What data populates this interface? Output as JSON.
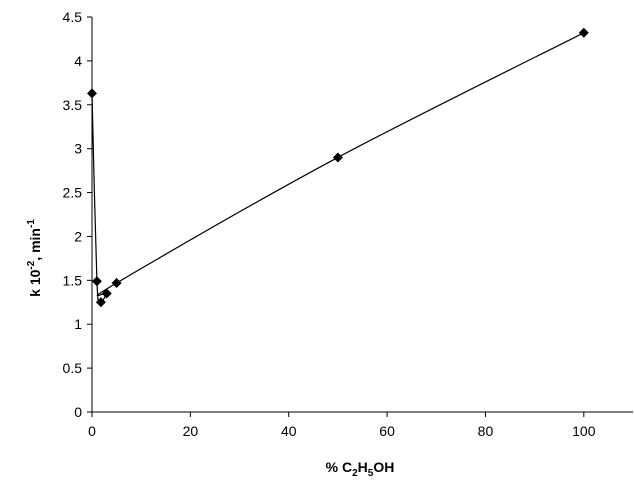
{
  "chart_data": {
    "type": "scatter",
    "title": "",
    "xlabel": {
      "main": "% C",
      "sub1": "2",
      "mid": "H",
      "sub2": "5",
      "end": "OH"
    },
    "ylabel": {
      "main": "k 10",
      "sup1": "-2",
      "mid": ", min",
      "sup2": "-1"
    },
    "xlim": [
      0,
      110
    ],
    "ylim": [
      0,
      4.5
    ],
    "x_ticks": [
      0,
      20,
      40,
      60,
      80,
      100
    ],
    "x_tick_labels": [
      "0",
      "20",
      "40",
      "60",
      "80",
      "100"
    ],
    "y_ticks": [
      0,
      0.5,
      1,
      1.5,
      2,
      2.5,
      3,
      3.5,
      4,
      4.5
    ],
    "y_tick_labels": [
      "0",
      "0.5",
      "1",
      "1.5",
      "2",
      "2.5",
      "3",
      "3.5",
      "4",
      "4.5"
    ],
    "grid": false,
    "legend": "none",
    "marker": "diamond",
    "series": [
      {
        "points": [
          {
            "x": 0,
            "y": 3.63
          },
          {
            "x": 1,
            "y": 1.49
          },
          {
            "x": 1.8,
            "y": 1.25
          },
          {
            "x": 3,
            "y": 1.35
          },
          {
            "x": 5,
            "y": 1.47
          },
          {
            "x": 50,
            "y": 2.9
          },
          {
            "x": 100,
            "y": 4.32
          }
        ]
      }
    ],
    "colors": {
      "series": "#000000",
      "axis": "#000000",
      "background": "#ffffff"
    }
  }
}
